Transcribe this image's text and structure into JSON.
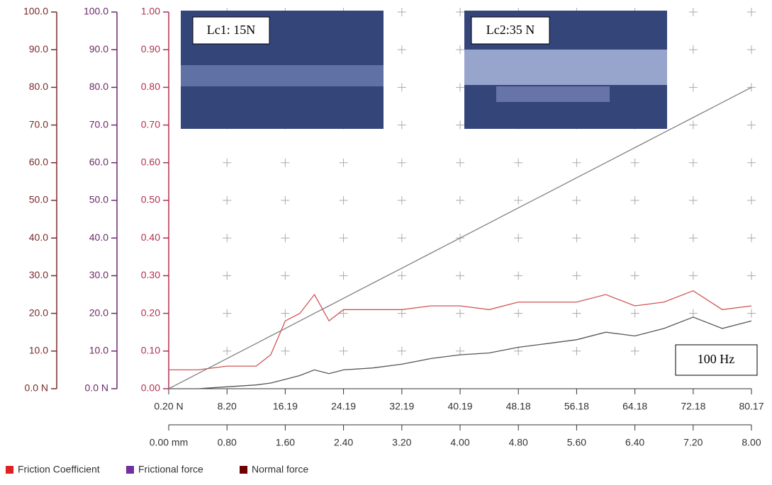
{
  "chart_data": {
    "type": "line",
    "x": [
      0,
      0.4,
      0.8,
      1.2,
      1.4,
      1.6,
      1.8,
      2.0,
      2.2,
      2.4,
      2.8,
      3.2,
      3.6,
      4.0,
      4.4,
      4.8,
      5.2,
      5.6,
      6.0,
      6.4,
      6.8,
      7.2,
      7.6,
      8.0
    ],
    "xlim": [
      0,
      8
    ],
    "xticks": [
      {
        "value": 0,
        "label": "0.00 mm"
      },
      {
        "value": 0.8,
        "label": "0.80"
      },
      {
        "value": 1.6,
        "label": "1.60"
      },
      {
        "value": 2.4,
        "label": "2.40"
      },
      {
        "value": 3.2,
        "label": "3.20"
      },
      {
        "value": 4.0,
        "label": "4.00"
      },
      {
        "value": 4.8,
        "label": "4.80"
      },
      {
        "value": 5.6,
        "label": "5.60"
      },
      {
        "value": 6.4,
        "label": "6.40"
      },
      {
        "value": 7.2,
        "label": "7.20"
      },
      {
        "value": 8.0,
        "label": "8.00"
      }
    ],
    "x2lim": [
      0.2,
      80.17
    ],
    "x2ticks": [
      {
        "value": 0.2,
        "label": "0.20 N"
      },
      {
        "value": 8.2,
        "label": "8.20"
      },
      16.19,
      24.19,
      32.19,
      40.19,
      48.18,
      56.18,
      64.18,
      72.18,
      80.17
    ],
    "yaxes": [
      {
        "color": "#7a2a2a",
        "ylim": [
          0,
          100
        ],
        "yticks": [
          {
            "value": 0,
            "label": "0.0 N"
          },
          {
            "value": 10,
            "label": "10.0"
          },
          {
            "value": 20,
            "label": "20.0"
          },
          {
            "value": 30,
            "label": "30.0"
          },
          {
            "value": 40,
            "label": "40.0"
          },
          {
            "value": 50,
            "label": "50.0"
          },
          {
            "value": 60,
            "label": "60.0"
          },
          {
            "value": 70,
            "label": "70.0"
          },
          {
            "value": 80,
            "label": "80.0"
          },
          {
            "value": 90,
            "label": "90.0"
          },
          {
            "value": 100,
            "label": "100.0"
          }
        ]
      },
      {
        "color": "#6a2a6a",
        "ylim": [
          0,
          100
        ],
        "yticks": [
          {
            "value": 0,
            "label": "0.0 N"
          },
          {
            "value": 10,
            "label": "10.0"
          },
          {
            "value": 20,
            "label": "20.0"
          },
          {
            "value": 30,
            "label": "30.0"
          },
          {
            "value": 40,
            "label": "40.0"
          },
          {
            "value": 50,
            "label": "50.0"
          },
          {
            "value": 60,
            "label": "60.0"
          },
          {
            "value": 70,
            "label": "70.0"
          },
          {
            "value": 80,
            "label": "80.0"
          },
          {
            "value": 90,
            "label": "90.0"
          },
          {
            "value": 100,
            "label": "100.0"
          }
        ]
      },
      {
        "color": "#b03050",
        "ylim": [
          0,
          1
        ],
        "yticks": [
          {
            "value": 0,
            "label": "0.00"
          },
          {
            "value": 0.1,
            "label": "0.10"
          },
          {
            "value": 0.2,
            "label": "0.20"
          },
          {
            "value": 0.3,
            "label": "0.30"
          },
          {
            "value": 0.4,
            "label": "0.40"
          },
          {
            "value": 0.5,
            "label": "0.50"
          },
          {
            "value": 0.6,
            "label": "0.60"
          },
          {
            "value": 0.7,
            "label": "0.70"
          },
          {
            "value": 0.8,
            "label": "0.80"
          },
          {
            "value": 0.9,
            "label": "0.90"
          },
          {
            "value": 1.0,
            "label": "1.00"
          }
        ]
      }
    ],
    "grid": true,
    "series": [
      {
        "name": "Friction Coefficient",
        "color": "#e02020",
        "line_color": "#d05555",
        "axis": 2,
        "values": [
          0.05,
          0.05,
          0.06,
          0.06,
          0.09,
          0.18,
          0.2,
          0.25,
          0.18,
          0.21,
          0.21,
          0.21,
          0.22,
          0.22,
          0.21,
          0.23,
          0.23,
          0.23,
          0.25,
          0.22,
          0.23,
          0.26,
          0.21,
          0.22
        ]
      },
      {
        "name": "Frictional force",
        "color": "#7030a0",
        "line_color": "#555555",
        "axis": 1,
        "values": [
          0,
          0,
          0.5,
          1,
          1.5,
          2.5,
          3.5,
          5,
          4,
          5,
          5.5,
          6.5,
          8,
          9,
          9.5,
          11,
          12,
          13,
          15,
          14,
          16,
          19,
          16,
          18
        ]
      },
      {
        "name": "Normal force",
        "color": "#6b0000",
        "line_color": "#808080",
        "axis": 0,
        "values": [
          0,
          4,
          8,
          12,
          14,
          16,
          18,
          20,
          22,
          24,
          28,
          32,
          36,
          40,
          44,
          48,
          52,
          56,
          60,
          64,
          68,
          72,
          76,
          80
        ]
      }
    ],
    "annotations": [
      "Lc1: 15N",
      "Lc2:35 N",
      "100 Hz"
    ]
  }
}
